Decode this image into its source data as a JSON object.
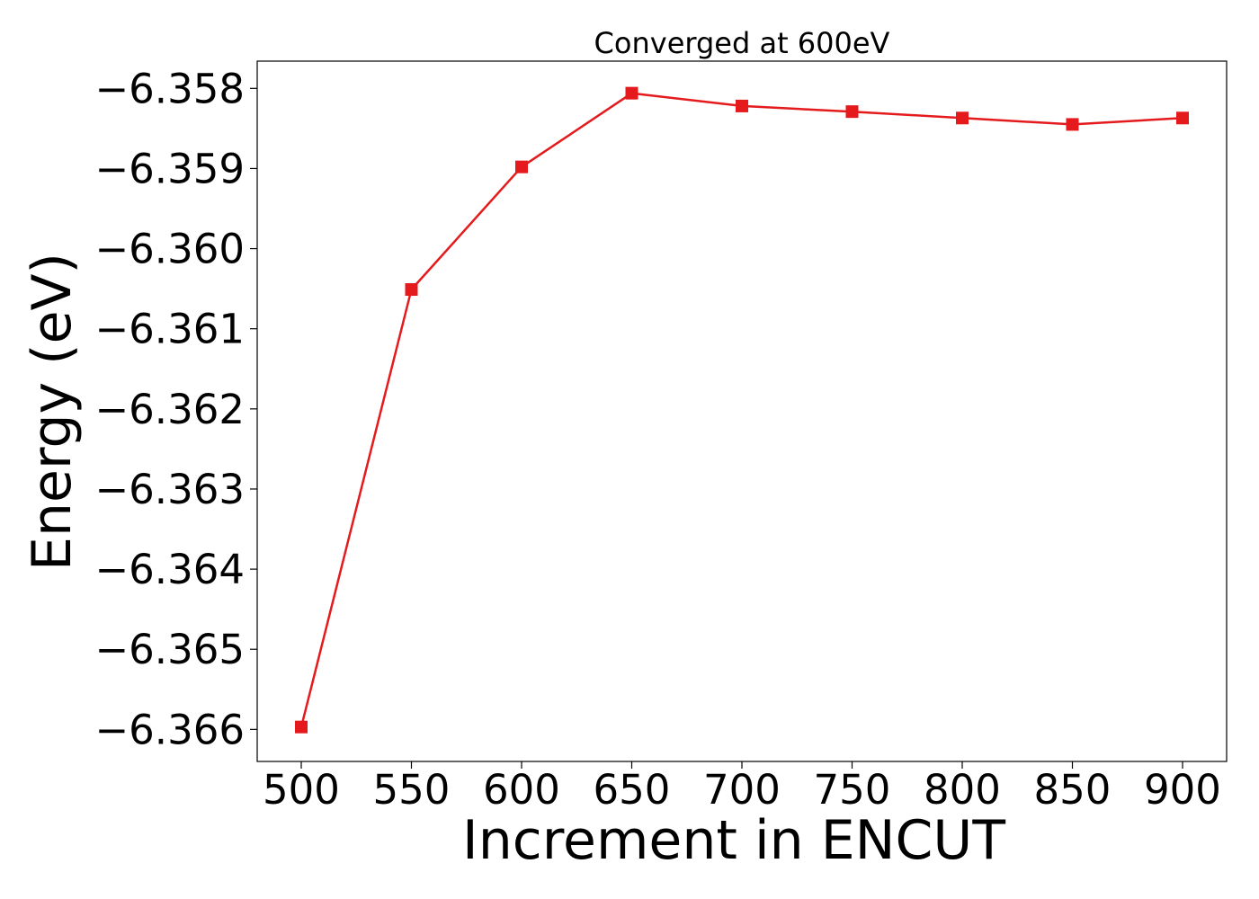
{
  "chart_data": {
    "type": "line",
    "title": "Converged at 600eV",
    "xlabel": "Increment in ENCUT",
    "ylabel": "Energy (eV)",
    "x": [
      500,
      550,
      600,
      650,
      700,
      750,
      800,
      850,
      900
    ],
    "xticks": [
      500,
      550,
      600,
      650,
      700,
      750,
      800,
      850,
      900
    ],
    "xtick_labels": [
      "500",
      "550",
      "600",
      "650",
      "700",
      "750",
      "800",
      "850",
      "900"
    ],
    "xlim": [
      480,
      920
    ],
    "yticks": [
      -6.358,
      -6.359,
      -6.36,
      -6.361,
      -6.362,
      -6.363,
      -6.364,
      -6.365,
      -6.366
    ],
    "ytick_labels": [
      "−6.358",
      "−6.359",
      "−6.360",
      "−6.361",
      "−6.362",
      "−6.363",
      "−6.364",
      "−6.365",
      "−6.366"
    ],
    "ylim": [
      -6.3664,
      -6.35766
    ],
    "series": [
      {
        "values": [
          -6.36597,
          -6.36051,
          -6.35898,
          -6.35806,
          -6.35822,
          -6.35829,
          -6.35837,
          -6.35845,
          -6.35837
        ],
        "color": "#e41a1c",
        "marker": "square"
      }
    ],
    "grid": false,
    "legend": "none"
  }
}
